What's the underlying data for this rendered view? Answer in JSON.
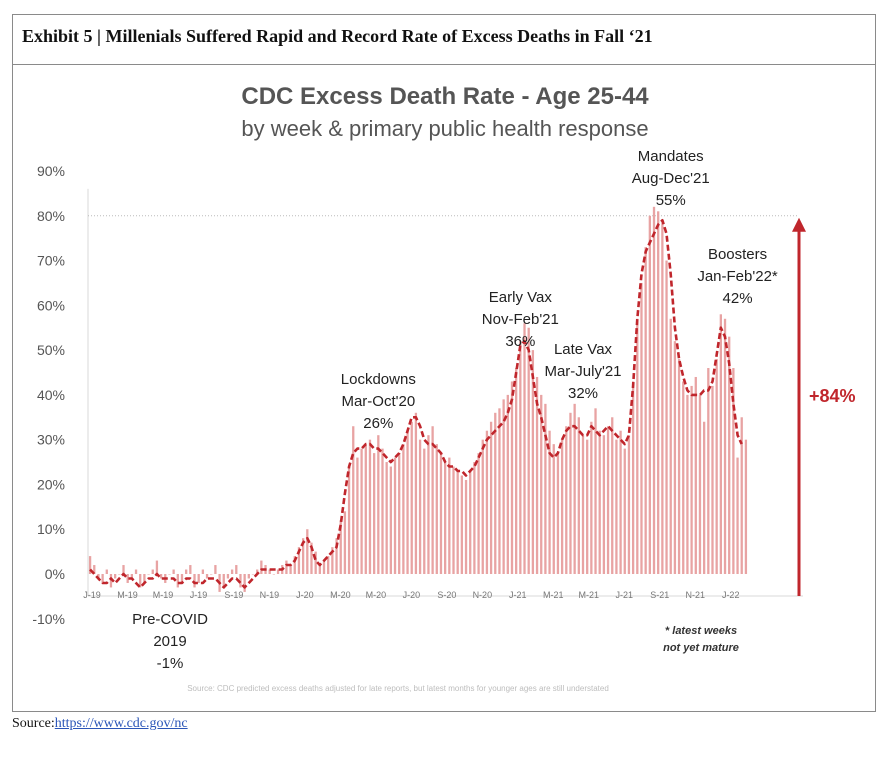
{
  "exhibit_title": "Exhibit 5 | Millenials Suffered Rapid and Record Rate of Excess Deaths in Fall ‘21",
  "source_label": "Source:",
  "source_url_text": "https://www.cdc.gov/nc",
  "colors": {
    "bar": "#e8a3a3",
    "line": "#c0262c",
    "arrow": "#c0262c",
    "refline": "#bbbbbb"
  },
  "chart_data": {
    "type": "bar",
    "title": "CDC Excess Death Rate - Age 25-44",
    "subtitle": "by week & primary public health response",
    "ylim": [
      -10,
      90
    ],
    "y_ticks": [
      "90%",
      "80%",
      "70%",
      "60%",
      "50%",
      "40%",
      "30%",
      "20%",
      "10%",
      "0%",
      "-10%"
    ],
    "y_tick_values": [
      90,
      80,
      70,
      60,
      50,
      40,
      30,
      20,
      10,
      0,
      -10
    ],
    "x_ticks": [
      "J-19",
      "M-19",
      "M-19",
      "J-19",
      "S-19",
      "N-19",
      "J-20",
      "M-20",
      "M-20",
      "J-20",
      "S-20",
      "N-20",
      "J-21",
      "M-21",
      "M-21",
      "J-21",
      "S-21",
      "N-21",
      "J-22"
    ],
    "reference_line": 80,
    "bars": [
      4,
      2,
      -1,
      -2,
      1,
      -3,
      -1,
      0,
      2,
      -2,
      -1,
      1,
      -3,
      -2,
      0,
      1,
      3,
      -1,
      -2,
      0,
      1,
      -3,
      -2,
      1,
      2,
      -3,
      -2,
      1,
      -1,
      0,
      2,
      -4,
      -3,
      -1,
      1,
      2,
      -3,
      -4,
      -1,
      0,
      1,
      3,
      2,
      1,
      0,
      1,
      2,
      3,
      2,
      4,
      6,
      8,
      10,
      7,
      5,
      2,
      3,
      4,
      6,
      8,
      12,
      14,
      24,
      33,
      26,
      28,
      29,
      30,
      27,
      31,
      28,
      25,
      24,
      26,
      27,
      29,
      32,
      34,
      36,
      30,
      28,
      31,
      33,
      29,
      27,
      25,
      26,
      24,
      23,
      22,
      21,
      23,
      25,
      27,
      30,
      32,
      34,
      36,
      37,
      39,
      40,
      43,
      46,
      52,
      56,
      55,
      50,
      44,
      40,
      38,
      32,
      29,
      27,
      30,
      33,
      36,
      38,
      35,
      31,
      30,
      34,
      37,
      32,
      31,
      33,
      35,
      30,
      32,
      28,
      31,
      43,
      57,
      65,
      73,
      80,
      82,
      81,
      79,
      70,
      57,
      52,
      48,
      43,
      40,
      42,
      44,
      40,
      34,
      46,
      42,
      48,
      58,
      57,
      53,
      46,
      26,
      35,
      30
    ],
    "trend": [
      1,
      0,
      -1,
      -2,
      -2,
      -1,
      -2,
      -1,
      0,
      -1,
      -1,
      -2,
      -3,
      -2,
      -1,
      -1,
      0,
      -1,
      -1,
      -1,
      -1,
      -2,
      -2,
      -1,
      -1,
      -2,
      -2,
      -2,
      -1,
      -1,
      -1,
      -2,
      -3,
      -2,
      -1,
      -1,
      -2,
      -3,
      -2,
      -1,
      0,
      1,
      1,
      1,
      1,
      1,
      1,
      2,
      2,
      3,
      5,
      7,
      8,
      6,
      3,
      2,
      3,
      4,
      5,
      6,
      11,
      18,
      24,
      27,
      28,
      28,
      29,
      29,
      28,
      28,
      27,
      26,
      25,
      26,
      27,
      29,
      32,
      35,
      35,
      33,
      30,
      29,
      29,
      28,
      27,
      25,
      24,
      24,
      23,
      23,
      22,
      23,
      24,
      26,
      28,
      30,
      31,
      32,
      33,
      34,
      36,
      39,
      45,
      51,
      52,
      50,
      44,
      38,
      35,
      31,
      27,
      26,
      27,
      30,
      32,
      33,
      33,
      32,
      31,
      31,
      33,
      32,
      31,
      32,
      33,
      32,
      31,
      30,
      29,
      31,
      42,
      57,
      67,
      72,
      74,
      76,
      78,
      79,
      76,
      67,
      55,
      48,
      44,
      41,
      40,
      40,
      40,
      41,
      41,
      43,
      49,
      55,
      53,
      47,
      38,
      31,
      29
    ],
    "annotations": [
      {
        "lines": [
          "Pre-COVID",
          "2019",
          "-1%"
        ],
        "x_index": 19
      },
      {
        "lines": [
          "Lockdowns",
          "Mar-Oct'20",
          "26%"
        ],
        "x_index": 69
      },
      {
        "lines": [
          "Early Vax",
          "Nov-Feb'21",
          "36%"
        ],
        "x_index": 103
      },
      {
        "lines": [
          "Late Vax",
          "Mar-July'21",
          "32%"
        ],
        "x_index": 118
      },
      {
        "lines": [
          "Mandates",
          "Aug-Dec'21",
          "55%"
        ],
        "x_index": 139
      },
      {
        "lines": [
          "Boosters",
          "Jan-Feb'22*",
          "42%"
        ],
        "x_index": 155
      }
    ],
    "change_label": "+84%",
    "footnote": [
      "* latest weeks",
      "not yet mature"
    ],
    "source_note": "Source: CDC predicted excess deaths adjusted for late reports, but latest months for younger ages are still understated"
  }
}
